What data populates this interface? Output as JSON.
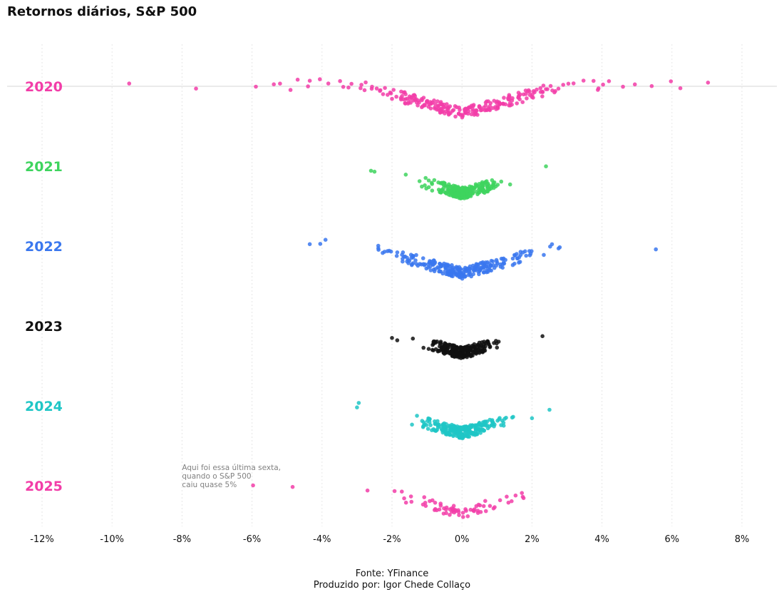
{
  "chart_data": {
    "type": "scatter",
    "title": "Retornos diários, S&P 500",
    "xlabel": "",
    "ylabel": "",
    "x_tick_values": [
      -12,
      -10,
      -8,
      -6,
      -4,
      -2,
      0,
      2,
      4,
      6,
      8
    ],
    "x_tick_labels": [
      "-12%",
      "-10%",
      "-8%",
      "-6%",
      "-4%",
      "-2%",
      "0%",
      "2%",
      "4%",
      "6%",
      "8%"
    ],
    "xlim": [
      -12.2,
      9
    ],
    "grid": "vertical dotted",
    "series": [
      {
        "name": "2020",
        "color": "#f23da8",
        "spread_min": -9.5,
        "spread_max": 7.0,
        "n_points": 253,
        "outliers": [
          -9.51,
          -7.6,
          -5.89,
          -5.2,
          -4.9,
          -4.4,
          -4.35,
          4.2,
          4.6,
          4.94,
          5.97,
          6.24,
          7.03
        ]
      },
      {
        "name": "2021",
        "color": "#3ed45e",
        "spread_min": -2.6,
        "spread_max": 2.4,
        "n_points": 252,
        "outliers": [
          -2.6,
          -2.5,
          2.4
        ]
      },
      {
        "name": "2022",
        "color": "#3a77ee",
        "spread_min": -4.3,
        "spread_max": 5.5,
        "n_points": 251,
        "outliers": [
          -4.35,
          -4.05,
          -3.9,
          5.54
        ]
      },
      {
        "name": "2023",
        "color": "#111111",
        "spread_min": -2.0,
        "spread_max": 2.3,
        "n_points": 250,
        "outliers": [
          -2.0,
          -1.85,
          2.3
        ]
      },
      {
        "name": "2024",
        "color": "#1fc6c6",
        "spread_min": -3.0,
        "spread_max": 2.5,
        "n_points": 252,
        "outliers": [
          -3.0,
          -2.95,
          2.5
        ]
      },
      {
        "name": "2025",
        "color": "#f23da8",
        "spread_min": -6.0,
        "spread_max": 2.2,
        "n_points": 70,
        "outliers": [
          -5.97,
          -4.84,
          -2.7
        ]
      }
    ],
    "annotation": {
      "text": "Aqui foi essa última sexta,\n quando o S&P 500\n caiu quase 5%",
      "x": -8.0,
      "series": "2025"
    },
    "reference_line": {
      "series": "2020",
      "style": "horizontal light gray"
    }
  },
  "footer": {
    "source": "Fonte: YFinance",
    "credit": "Produzido por: Igor Chede Collaço"
  }
}
